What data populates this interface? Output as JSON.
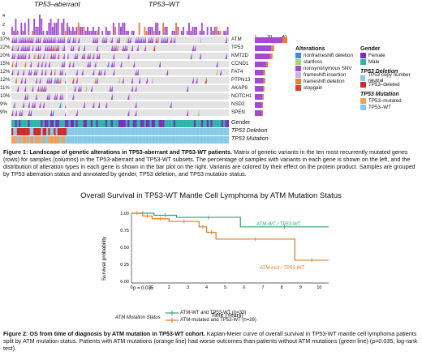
{
  "figure1": {
    "groups": [
      "TP53–aberrant",
      "TP53–WT"
    ],
    "y_ticks": [
      "4",
      "2",
      "0"
    ],
    "genes": [
      "ATM",
      "TP53",
      "KMT2D",
      "CCND1",
      "FAT4",
      "PTPN13",
      "AKAP9",
      "NOTCH1",
      "NSD2",
      "SPEN"
    ],
    "percentages": [
      "37%",
      "22%",
      "20%",
      "15%",
      "12%",
      "12%",
      "11%",
      "10%",
      "9%",
      "9%"
    ],
    "gene_totals": [
      44,
      26,
      24,
      18,
      14,
      14,
      13,
      12,
      11,
      11
    ],
    "bar_axis_ticks": [
      "0",
      "20",
      "40"
    ],
    "annot_tracks": [
      "Gender",
      "TP53 Deletion",
      "TP53 Mutation"
    ],
    "legend": {
      "alterations_title": "Alterations",
      "alterations": [
        {
          "label": "nonframeshift deletion",
          "color": "#3d8bd9"
        },
        {
          "label": "startloss",
          "color": "#a9d27a"
        },
        {
          "label": "nonsynonymous SNV",
          "color": "#a24ad0"
        },
        {
          "label": "frameshift insertion",
          "color": "#c8b6e2"
        },
        {
          "label": "frameshift deletion",
          "color": "#e87b3a"
        },
        {
          "label": "stopgain",
          "color": "#d9412e"
        }
      ],
      "gender_title": "Gender",
      "gender": [
        {
          "label": "Female",
          "color": "#7b2dbe"
        },
        {
          "label": "Male",
          "color": "#2bb5a8"
        }
      ],
      "deletion_title": "TP53 Deletion",
      "deletion": [
        {
          "label": "TP53 copy number neutral",
          "color": "#86c9e6"
        },
        {
          "label": "TP53–deleted",
          "color": "#cc2a2a"
        }
      ],
      "mutation_title": "TP53 Mutation",
      "mutation": [
        {
          "label": "TP53–mutated",
          "color": "#f0a05a"
        },
        {
          "label": "TP53–WT",
          "color": "#86c9e6"
        }
      ]
    },
    "caption_bold": "Figure 1: Landscape of genetic alterations in TP53-aberrant and TP53-WT patients.",
    "caption_text": "Matrix of genetic variants in the ten most recurrently mutated genes (rows) for samples (columns) in the TP53-aberrant and TP53-WT subsets. The percentage of samples with variants in each gene is shown on the left, and the distribution of alteration types in each gene is shown in the bar plot on the right. Variants are colored by their effect on the protein product. Samples are grouped by TP53 aberration status and annotated by gender, TP53 deletion, and TP53 mutation status."
  },
  "figure2": {
    "title": "Overall Survival in TP53-WT Mantle Cell Lymphoma by ATM Mutation Status",
    "ylabel": "Survival probability",
    "xlabel": "Time (Years)",
    "pvalue": "p = 0.035",
    "legend_title": "ATM Mutation Status",
    "legend_items": [
      "ATM-WT and TP53-WT (n=33)",
      "ATM-mutated and TP53-WT (n=26)"
    ],
    "curve_labels": [
      "ATM-WT / TP53-WT",
      "ATM-mut / TP53-WT"
    ],
    "caption_bold": "Figure 2: OS from time of diagnosis by ATM mutation in TP53-WT cohort.",
    "caption_text": "Kaplan-Meier curve of overall survival in TP53-WT mantle cell lymphoma patients split by ATM mutation status. Patients with ATM mutations (orange line) had worse outcomes than patients without ATM mutations (green line) (p=0.035, log-rank test).",
    "chart_data": {
      "type": "line",
      "xlim": [
        0,
        10.5
      ],
      "ylim": [
        0,
        1
      ],
      "x_ticks": [
        0,
        1,
        2,
        3,
        4,
        5,
        6,
        7,
        8,
        9,
        10
      ],
      "y_ticks": [
        0.0,
        0.25,
        0.5,
        0.75,
        1.0
      ],
      "series": [
        {
          "name": "ATM-WT and TP53-WT (n=33)",
          "color": "#2aa37a",
          "x": [
            0,
            1.2,
            1.2,
            2.4,
            2.4,
            5.8,
            5.8,
            10.5
          ],
          "y": [
            1,
            1,
            0.97,
            0.97,
            0.94,
            0.94,
            0.8,
            0.8
          ]
        },
        {
          "name": "ATM-mutated and TP53-WT (n=26)",
          "color": "#e27a20",
          "x": [
            0,
            0.6,
            0.6,
            1.1,
            1.1,
            2.0,
            2.0,
            3.6,
            3.6,
            4.0,
            4.0,
            4.5,
            4.5,
            8.7,
            8.7,
            10.5
          ],
          "y": [
            1,
            1,
            0.96,
            0.96,
            0.92,
            0.92,
            0.88,
            0.88,
            0.8,
            0.8,
            0.72,
            0.72,
            0.62,
            0.62,
            0.31,
            0.31
          ]
        }
      ]
    }
  }
}
